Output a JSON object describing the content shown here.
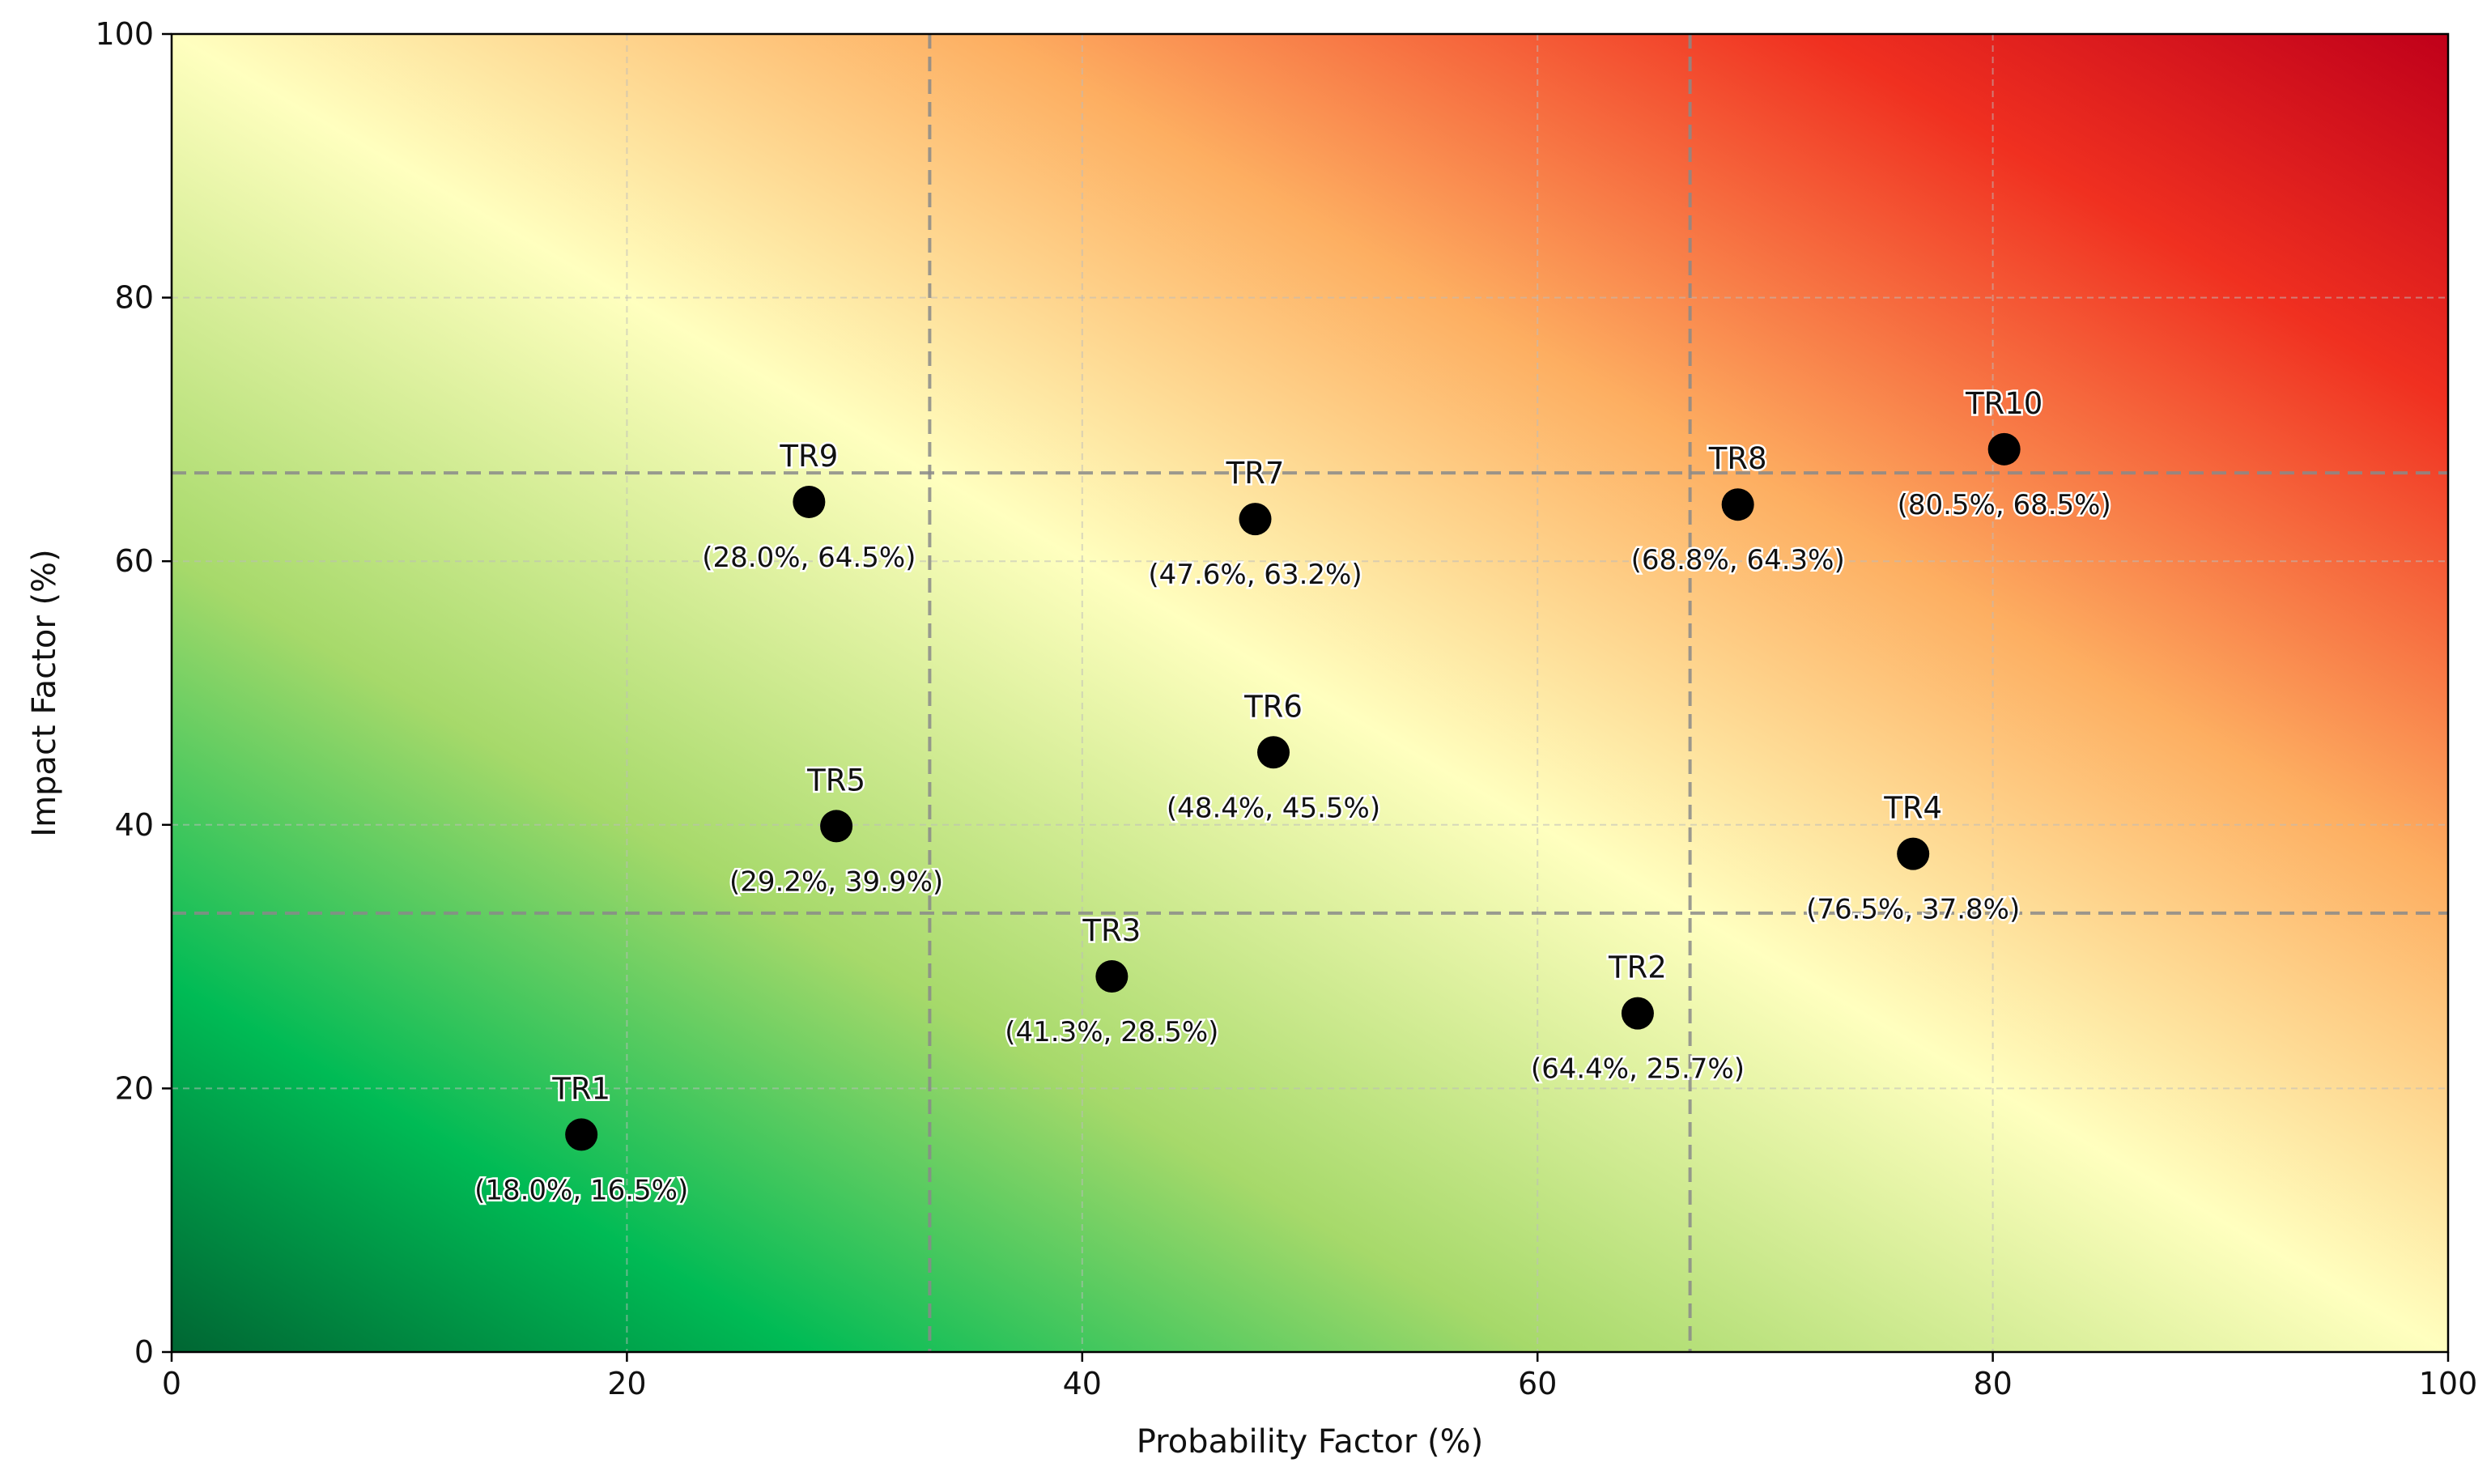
{
  "chart_data": {
    "type": "scatter",
    "title": "",
    "xlabel": "Probability Factor (%)",
    "ylabel": "Impact Factor (%)",
    "xlim": [
      0,
      100
    ],
    "ylim": [
      0,
      100
    ],
    "x_ticks": [
      0,
      20,
      40,
      60,
      80,
      100
    ],
    "y_ticks": [
      0,
      20,
      40,
      60,
      80,
      100
    ],
    "grid": true,
    "zone_thresholds": [
      33.3,
      66.7
    ],
    "background_gradient": {
      "colors": [
        "#006633",
        "#00bb55",
        "#a6d96a",
        "#ffffbf",
        "#fdae61",
        "#f03020",
        "#c0001a"
      ],
      "direction": "low-low green to high-high red"
    },
    "points": [
      {
        "label": "TR1",
        "x": 18.0,
        "y": 16.5,
        "annotation": "(18.0%, 16.5%)"
      },
      {
        "label": "TR2",
        "x": 64.4,
        "y": 25.7,
        "annotation": "(64.4%, 25.7%)"
      },
      {
        "label": "TR3",
        "x": 41.3,
        "y": 28.5,
        "annotation": "(41.3%, 28.5%)"
      },
      {
        "label": "TR4",
        "x": 76.5,
        "y": 37.8,
        "annotation": "(76.5%, 37.8%)"
      },
      {
        "label": "TR5",
        "x": 29.2,
        "y": 39.9,
        "annotation": "(29.2%, 39.9%)"
      },
      {
        "label": "TR6",
        "x": 48.4,
        "y": 45.5,
        "annotation": "(48.4%, 45.5%)"
      },
      {
        "label": "TR7",
        "x": 47.6,
        "y": 63.2,
        "annotation": "(47.6%, 63.2%)"
      },
      {
        "label": "TR8",
        "x": 68.8,
        "y": 64.3,
        "annotation": "(68.8%, 64.3%)"
      },
      {
        "label": "TR9",
        "x": 28.0,
        "y": 64.5,
        "annotation": "(28.0%, 64.5%)"
      },
      {
        "label": "TR10",
        "x": 80.5,
        "y": 68.5,
        "annotation": "(80.5%, 68.5%)"
      }
    ]
  }
}
